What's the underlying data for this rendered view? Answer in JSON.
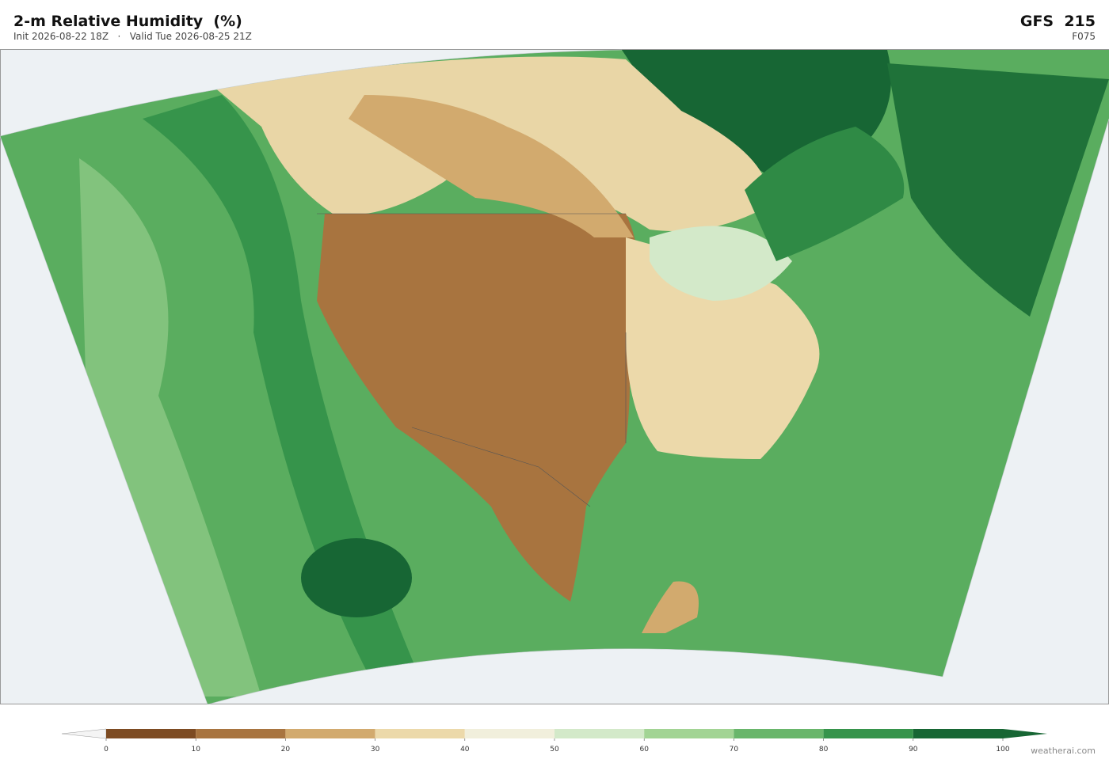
{
  "header": {
    "title": "2-m Relative Humidity  (%)",
    "init": "Init 2026-08-22 18Z",
    "separator": "·",
    "valid": "Valid Tue 2026-08-25 21Z",
    "model": "GFS  215",
    "forecast_hour": "F075"
  },
  "colorbar": {
    "ticks": [
      0,
      10,
      20,
      30,
      40,
      50,
      60,
      70,
      80,
      90,
      100
    ],
    "colors": [
      "#7d4b22",
      "#a8743f",
      "#d2aa6e",
      "#ecd9aa",
      "#f1efdc",
      "#d3e9c9",
      "#a2d494",
      "#69b66b",
      "#36944b",
      "#176634"
    ],
    "under_color": "#f4f4f4",
    "over_color": "#176634"
  },
  "watermark": "weatherai.com"
}
